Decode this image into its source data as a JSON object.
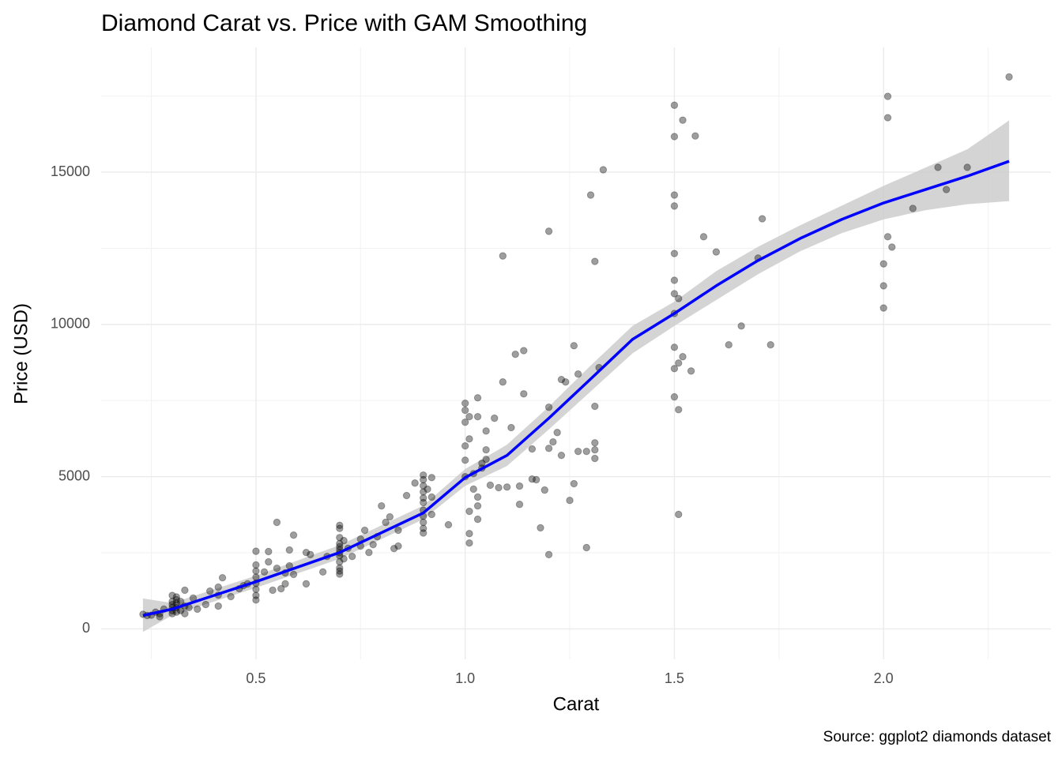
{
  "chart_data": {
    "type": "scatter",
    "title": "Diamond Carat vs. Price with GAM Smoothing",
    "x_label": "Carat",
    "y_label": "Price (USD)",
    "caption": "Source: ggplot2 diamonds dataset",
    "xlim": [
      0.13,
      2.4
    ],
    "ylim": [
      -1000,
      19100
    ],
    "xticks": [
      0.5,
      {
        "value": 1,
        "label": "1.0"
      },
      1.5,
      {
        "value": 2,
        "label": "2.0"
      }
    ],
    "yticks": [
      0,
      5000,
      10000,
      15000
    ],
    "x_minor_ticks": [
      0.25,
      0.75,
      1.25,
      1.75,
      2.25
    ],
    "y_minor_ticks": [
      2500,
      7500,
      12500,
      17500
    ],
    "grid": true,
    "color": "#000000",
    "x": [
      2.3,
      2.01,
      2.01,
      1.5,
      1.52,
      1.5,
      1.55,
      1.33,
      2.13,
      2.2,
      2.15,
      1.3,
      1.5,
      1.5,
      2.07,
      1.71,
      1.2,
      2.01,
      1.57,
      2.02,
      1.6,
      1.09,
      1.5,
      1.7,
      1.31,
      2.0,
      1.5,
      2.0,
      1.5,
      1.51,
      2.0,
      1.5,
      1.66,
      1.63,
      1.73,
      1.26,
      1.5,
      1.14,
      1.12,
      1.52,
      1.51,
      1.5,
      1.54,
      1.32,
      1.27,
      1.23,
      1.24,
      1.09,
      1.14,
      1.5,
      1.0,
      1.03,
      1.51,
      1.31,
      1.0,
      1.01,
      1.0,
      1.03,
      1.07,
      1.05,
      1.11,
      1.2,
      1.22,
      1.21,
      1.31,
      1.31,
      1.31,
      1.27,
      1.29,
      1.23,
      1.2,
      1.16,
      1.01,
      1.0,
      1.05,
      1.0,
      1.05,
      1.04,
      1.04,
      1.0,
      1.02,
      1.06,
      1.1,
      1.08,
      1.16,
      1.17,
      1.19,
      1.13,
      1.26,
      1.25,
      1.13,
      1.02,
      1.03,
      1.03,
      1.01,
      1.03,
      1.01,
      1.01,
      1.18,
      1.29,
      1.2,
      1.51,
      0.9,
      0.9,
      0.9,
      0.9,
      0.9,
      0.9,
      0.9,
      0.9,
      0.9,
      0.9,
      0.9,
      0.92,
      0.92,
      0.92,
      0.91,
      0.96,
      0.88,
      0.86,
      0.8,
      0.82,
      0.79,
      0.81,
      0.84,
      0.84,
      0.83,
      0.76,
      0.78,
      0.75,
      0.73,
      0.77,
      0.75,
      0.7,
      0.7,
      0.7,
      0.7,
      0.7,
      0.7,
      0.7,
      0.7,
      0.7,
      0.7,
      0.7,
      0.7,
      0.71,
      0.71,
      0.72,
      0.59,
      0.55,
      0.63,
      0.62,
      0.58,
      0.58,
      0.62,
      0.57,
      0.55,
      0.53,
      0.52,
      0.66,
      0.67,
      0.5,
      0.5,
      0.5,
      0.5,
      0.5,
      0.5,
      0.5,
      0.5,
      0.53,
      0.54,
      0.56,
      0.57,
      0.59,
      0.47,
      0.48,
      0.42,
      0.46,
      0.44,
      0.41,
      0.41,
      0.41,
      0.39,
      0.38,
      0.36,
      0.35,
      0.33,
      0.34,
      0.31,
      0.3,
      0.3,
      0.3,
      0.3,
      0.3,
      0.3,
      0.31,
      0.31,
      0.31,
      0.31,
      0.32,
      0.32,
      0.33,
      0.33,
      0.27,
      0.27,
      0.28,
      0.26,
      0.25,
      0.23,
      0.24
    ],
    "values": [
      18130,
      17490,
      16790,
      17200,
      16710,
      16170,
      16190,
      15080,
      15160,
      15160,
      14430,
      14250,
      14250,
      13890,
      13810,
      13470,
      13060,
      12880,
      12880,
      12540,
      12380,
      12250,
      12330,
      12180,
      12070,
      11990,
      11450,
      11270,
      11010,
      10850,
      10540,
      10360,
      9950,
      9330,
      9330,
      9300,
      9250,
      9140,
      9020,
      8940,
      8730,
      8550,
      8470,
      8580,
      8370,
      8190,
      8110,
      8110,
      7720,
      7620,
      7410,
      7590,
      7200,
      7310,
      7180,
      6970,
      6790,
      6970,
      6920,
      6500,
      6610,
      7280,
      6450,
      6140,
      6110,
      5880,
      5600,
      5830,
      5830,
      5700,
      5930,
      5910,
      6240,
      6010,
      5880,
      5540,
      5570,
      5440,
      5280,
      5000,
      5100,
      4720,
      4660,
      4640,
      4920,
      4900,
      4560,
      4690,
      4770,
      4220,
      4090,
      4590,
      4330,
      4040,
      3860,
      3600,
      3130,
      2820,
      3320,
      2670,
      2440,
      3760,
      5050,
      4900,
      4700,
      4500,
      4300,
      4150,
      3900,
      3700,
      3500,
      3300,
      3150,
      4970,
      4330,
      3760,
      4590,
      3420,
      4790,
      4380,
      4040,
      3680,
      3030,
      3500,
      3240,
      2720,
      2640,
      3240,
      2770,
      2950,
      2380,
      2510,
      2720,
      3400,
      3300,
      3000,
      2800,
      2700,
      2600,
      2500,
      2400,
      2200,
      2000,
      1900,
      1800,
      2900,
      2300,
      2650,
      3080,
      3500,
      2440,
      2510,
      2590,
      2070,
      1480,
      1840,
      1990,
      2200,
      1870,
      1870,
      2380,
      2550,
      2100,
      1900,
      1700,
      1500,
      1300,
      1100,
      950,
      2540,
      1270,
      1320,
      1480,
      1790,
      1420,
      1480,
      1680,
      1320,
      1060,
      1110,
      750,
      1370,
      1240,
      800,
      650,
      1010,
      1270,
      700,
      960,
      1100,
      900,
      800,
      700,
      600,
      500,
      1050,
      850,
      700,
      550,
      900,
      600,
      750,
      500,
      500,
      400,
      650,
      550,
      450,
      480,
      440
    ],
    "smooth": {
      "color": "#0000ff",
      "band_color": "#cccccc",
      "x": [
        0.23,
        0.3,
        0.5,
        0.7,
        0.9,
        1.0,
        1.1,
        1.2,
        1.3,
        1.4,
        1.5,
        1.6,
        1.7,
        1.8,
        1.9,
        2.0,
        2.1,
        2.2,
        2.3
      ],
      "values": [
        440,
        650,
        1550,
        2510,
        3810,
        4970,
        5700,
        6920,
        8210,
        9510,
        10360,
        11270,
        12100,
        12820,
        13450,
        13990,
        14430,
        14870,
        15360
      ],
      "lower": [
        -100,
        450,
        1350,
        2300,
        3600,
        4700,
        5350,
        6550,
        7800,
        9050,
        9950,
        10800,
        11650,
        12400,
        13000,
        13450,
        13750,
        13950,
        14050
      ],
      "upper": [
        1000,
        850,
        1750,
        2750,
        4050,
        5250,
        6050,
        7300,
        8650,
        9950,
        10750,
        11750,
        12550,
        13250,
        13900,
        14550,
        15150,
        15750,
        16700
      ]
    }
  }
}
